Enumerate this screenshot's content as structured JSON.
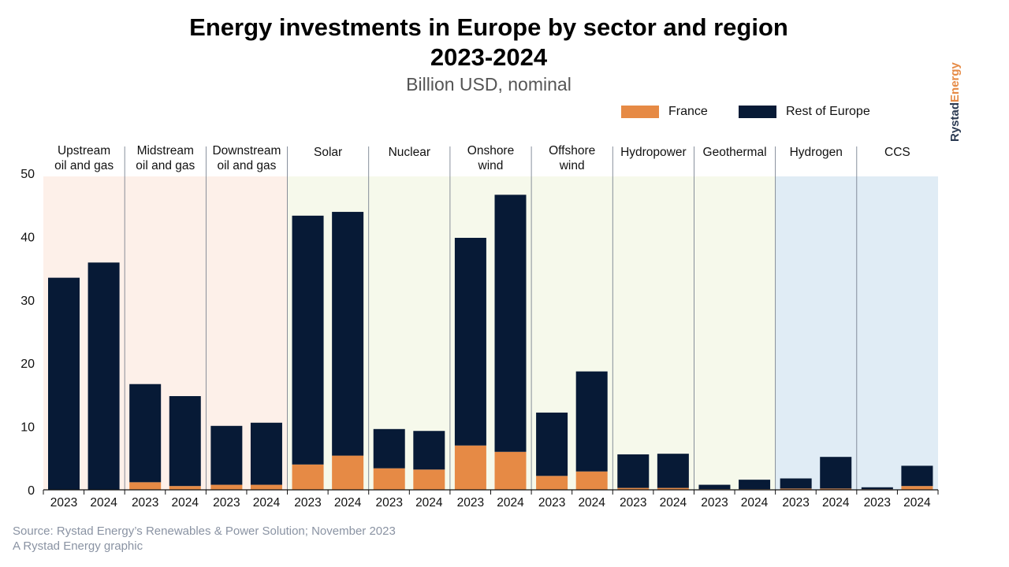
{
  "title_line1": "Energy investments in Europe by sector and region",
  "title_line2": "2023-2024",
  "subtitle": "Billion USD, nominal",
  "legend": {
    "france": "France",
    "rest": "Rest of Europe"
  },
  "brand": {
    "part1": "Rystad",
    "part2": "Energy"
  },
  "footer": {
    "source": "Source: Rystad Energy’s Renewables & Power Solution; November 2023",
    "credit": "A Rystad Energy graphic"
  },
  "colors": {
    "france": "#e68a45",
    "rest": "#071a36",
    "bg_oilgas": "#fdf0e9",
    "bg_renew": "#f6f9eb",
    "bg_newtech": "#e0ecf5"
  },
  "chart_data": {
    "type": "bar",
    "stacked": true,
    "ylim": [
      0,
      50
    ],
    "yticks": [
      0,
      10,
      20,
      30,
      40,
      50
    ],
    "legend_position": "top-right",
    "groups": [
      {
        "name": [
          "Upstream",
          "oil and gas"
        ],
        "band": "oilgas"
      },
      {
        "name": [
          "Midstream",
          "oil and gas"
        ],
        "band": "oilgas"
      },
      {
        "name": [
          "Downstream",
          "oil and gas"
        ],
        "band": "oilgas"
      },
      {
        "name": [
          "Solar"
        ],
        "band": "renew"
      },
      {
        "name": [
          "Nuclear"
        ],
        "band": "renew"
      },
      {
        "name": [
          "Onshore",
          "wind"
        ],
        "band": "renew"
      },
      {
        "name": [
          "Offshore",
          "wind"
        ],
        "band": "renew"
      },
      {
        "name": [
          "Hydropower"
        ],
        "band": "renew"
      },
      {
        "name": [
          "Geothermal"
        ],
        "band": "renew"
      },
      {
        "name": [
          "Hydrogen"
        ],
        "band": "newtech"
      },
      {
        "name": [
          "CCS"
        ],
        "band": "newtech"
      }
    ],
    "years": [
      "2023",
      "2024"
    ],
    "series": [
      {
        "name": "France",
        "values": [
          0,
          0,
          1.2,
          0.6,
          0.8,
          0.8,
          4.0,
          5.4,
          3.4,
          3.2,
          7.0,
          6.0,
          2.2,
          2.9,
          0.3,
          0.3,
          0.1,
          0.1,
          0.2,
          0.2,
          0.1,
          0.6
        ]
      },
      {
        "name": "Rest of Europe",
        "values": [
          33.5,
          35.9,
          15.5,
          14.2,
          9.3,
          9.8,
          39.3,
          38.5,
          6.2,
          6.1,
          32.8,
          40.6,
          10.0,
          15.8,
          5.3,
          5.4,
          0.7,
          1.5,
          1.6,
          5.0,
          0.3,
          3.2
        ]
      }
    ]
  }
}
